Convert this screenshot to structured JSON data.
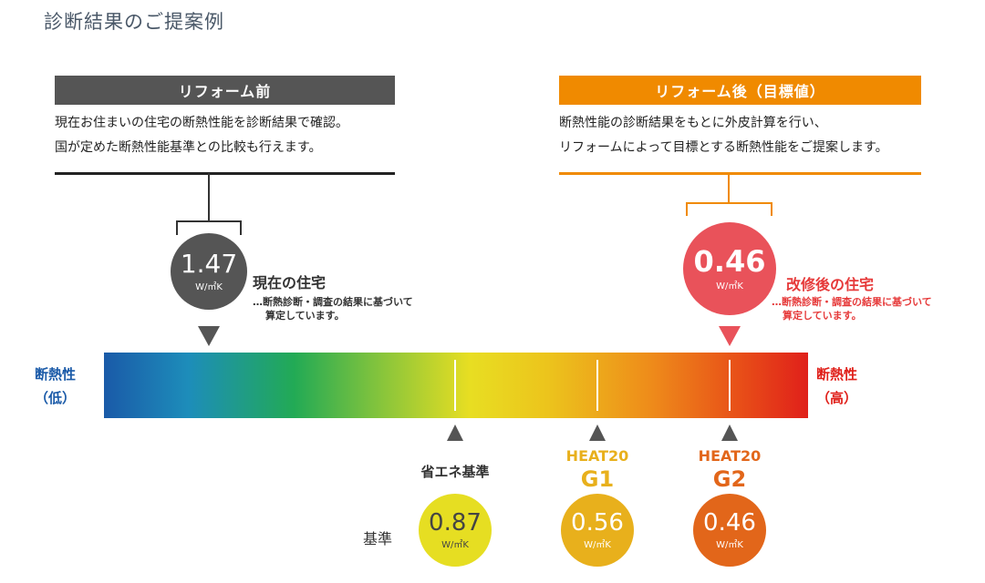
{
  "title": "診断結果のご提案例",
  "before": {
    "heading": "リフォーム前",
    "desc": [
      "現在お住まいの住宅の断熱性能を診断結果で確認。",
      "国が定めた断熱性能基準との比較も行えます。"
    ],
    "value": "1.47",
    "unit": "W/㎡K",
    "label": "現在の住宅",
    "note": [
      "…断熱診断・調査の結果に基づいて",
      "算定しています。"
    ]
  },
  "after": {
    "heading": "リフォーム後（目標値）",
    "desc": [
      "断熱性能の診断結果をもとに外皮計算を行い、",
      "リフォームによって目標とする断熱性能をご提案します。"
    ],
    "value": "0.46",
    "unit": "W/㎡K",
    "label": "改修後の住宅",
    "note": [
      "…断熱診断・調査の結果に基づいて",
      "算定しています。"
    ]
  },
  "scale": {
    "low": [
      "断熱性",
      "（低）"
    ],
    "high": [
      "断熱性",
      "（高）"
    ]
  },
  "standards_label": "基準",
  "standards": [
    {
      "name": "省エネ基準",
      "name2": "",
      "value": "0.87",
      "unit": "W/㎡K",
      "color": "#e6de22"
    },
    {
      "name": "HEAT20",
      "name2": "G1",
      "value": "0.56",
      "unit": "W/㎡K",
      "color": "#e8b01c"
    },
    {
      "name": "HEAT20",
      "name2": "G2",
      "value": "0.46",
      "unit": "W/㎡K",
      "color": "#e2661a"
    }
  ],
  "colors": {
    "before": "#555555",
    "after": "#f08a00",
    "after_circle": "#e9525a",
    "low": "#1a5aa8",
    "high": "#e0201a"
  }
}
